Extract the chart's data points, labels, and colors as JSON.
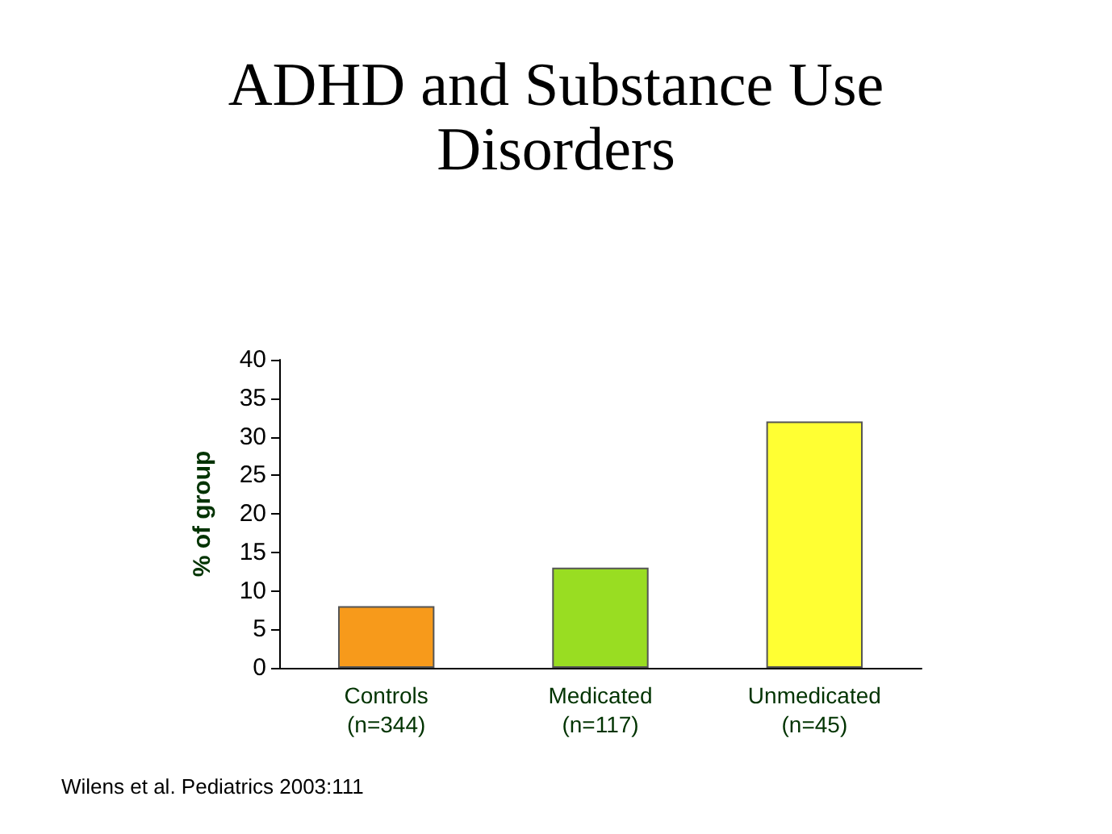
{
  "chart_data": {
    "type": "bar",
    "title": "ADHD and Substance Use\nDisorders",
    "ylabel": "% of group",
    "categories": [
      "Controls\n(n=344)",
      "Medicated\n(n=117)",
      "Unmedicated\n(n=45)"
    ],
    "values": [
      8,
      13,
      32
    ],
    "colors": [
      "#f79a1b",
      "#99dd22",
      "#ffff33"
    ],
    "ylim": [
      0,
      40
    ],
    "yticks": [
      0,
      5,
      10,
      15,
      20,
      25,
      30,
      35,
      40
    ],
    "grid": false,
    "annotations": [
      "Wilens et al. Pediatrics 2003:111"
    ]
  }
}
